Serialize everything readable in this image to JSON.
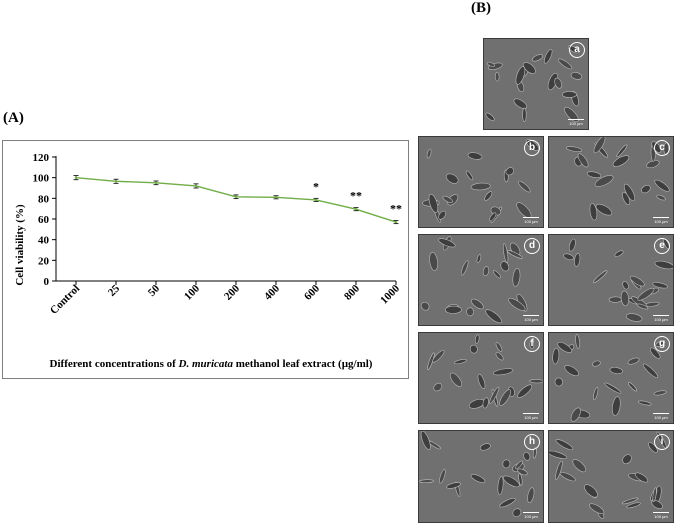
{
  "panel_labels": {
    "a": "(A)",
    "b": "(B)"
  },
  "chart_data": {
    "type": "line",
    "categories": [
      "Control",
      "25",
      "50",
      "100",
      "200",
      "400",
      "600",
      "800",
      "1000"
    ],
    "series": [
      {
        "values": [
          100,
          96.5,
          95,
          92,
          81.5,
          81,
          78.5,
          69.5,
          57
        ],
        "color": "#70ad47"
      }
    ],
    "error": [
      2,
      2,
      1.8,
      2,
      1.8,
      1.5,
      1.5,
      1.5,
      1.5
    ],
    "annotations": [
      "",
      "",
      "",
      "",
      "",
      "",
      "*",
      "**",
      "**"
    ],
    "ylabel": "Cell viability (%)",
    "xlabel_prefix": "Different concentrations  of ",
    "xlabel_species": "D. muricata",
    "xlabel_suffix": " methanol  leaf extract (µg/ml)",
    "ylim": [
      0,
      120
    ],
    "yticks": [
      0,
      20,
      40,
      60,
      80,
      100,
      120
    ],
    "grid": false,
    "legend": "none"
  },
  "micrographs": [
    {
      "id": "a",
      "scale": "100 μm"
    },
    {
      "id": "b",
      "scale": "100 μm"
    },
    {
      "id": "c",
      "scale": "100 μm"
    },
    {
      "id": "d",
      "scale": "100 μm"
    },
    {
      "id": "e",
      "scale": "100 μm"
    },
    {
      "id": "f",
      "scale": "100 μm"
    },
    {
      "id": "g",
      "scale": "100 μm"
    },
    {
      "id": "h",
      "scale": "100 μm"
    },
    {
      "id": "i",
      "scale": "100 μm"
    }
  ]
}
